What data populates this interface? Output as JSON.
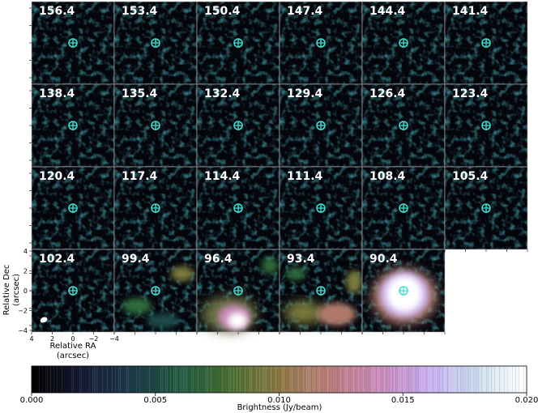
{
  "panels": [
    {
      "label": "156.4"
    },
    {
      "label": "153.4"
    },
    {
      "label": "150.4"
    },
    {
      "label": "147.4"
    },
    {
      "label": "144.4"
    },
    {
      "label": "141.4"
    },
    {
      "label": "138.4"
    },
    {
      "label": "135.4"
    },
    {
      "label": "132.4"
    },
    {
      "label": "129.4"
    },
    {
      "label": "126.4"
    },
    {
      "label": "123.4"
    },
    {
      "label": "120.4"
    },
    {
      "label": "117.4"
    },
    {
      "label": "114.4"
    },
    {
      "label": "111.4"
    },
    {
      "label": "108.4"
    },
    {
      "label": "105.4"
    },
    {
      "label": "102.4"
    },
    {
      "label": "99.4"
    },
    {
      "label": "96.4"
    },
    {
      "label": "93.4"
    },
    {
      "label": "90.4"
    }
  ],
  "axes": {
    "ylabel_line1": "Relative Dec",
    "ylabel_line2": "(arcsec)",
    "xlabel_line1": "Relative RA",
    "xlabel_line2": "(arcsec)",
    "yticks": [
      "4",
      "2",
      "0",
      "−2",
      "−4"
    ],
    "xticks": [
      "4",
      "2",
      "0",
      "−2",
      "−4"
    ]
  },
  "colorbar": {
    "label": "Brightness (Jy/beam)",
    "ticks": [
      "0.000",
      "0.005",
      "0.010",
      "0.015",
      "0.020"
    ],
    "vmin": 0.0,
    "vmax": 0.02
  },
  "colors": {
    "marker": "#40e0d0",
    "panel_background": "#05050c",
    "colormap": [
      "#000000",
      "#1a1f3a",
      "#1f4a4a",
      "#2f6a3a",
      "#7a7a3a",
      "#b07a6a",
      "#c889b8",
      "#c9b2ee",
      "#d6e2f2",
      "#ffffff"
    ]
  }
}
